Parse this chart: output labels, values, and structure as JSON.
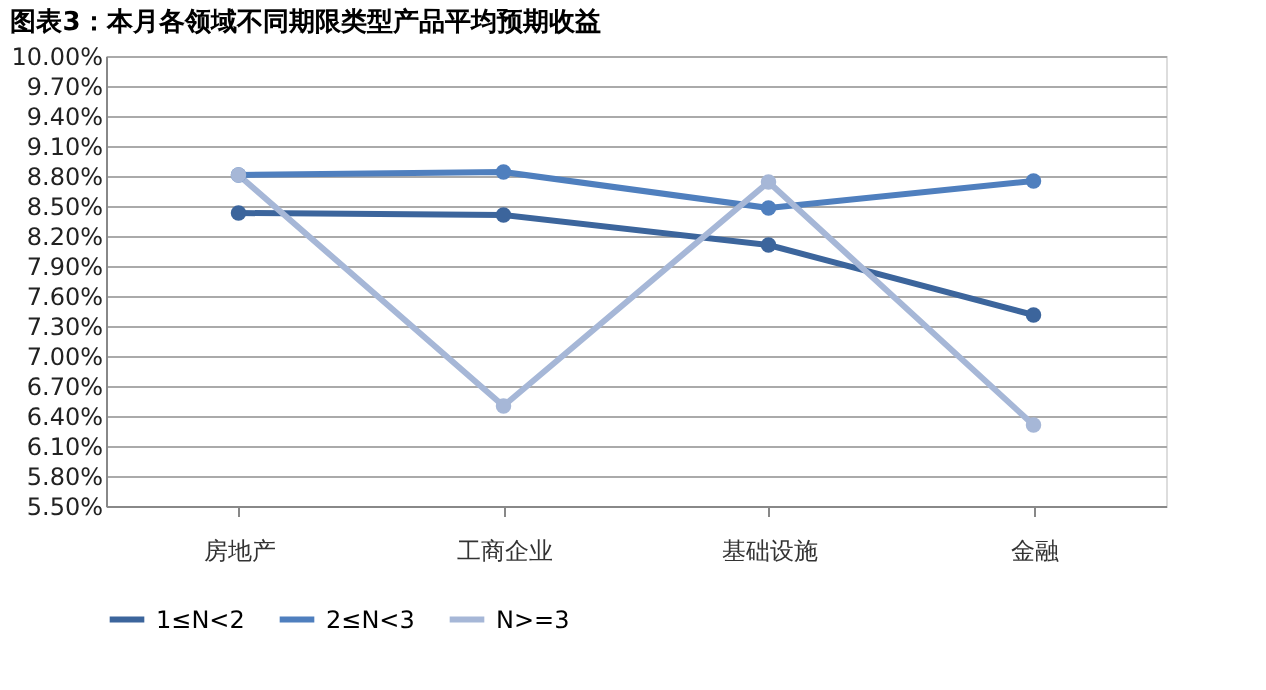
{
  "chart_data": {
    "type": "line",
    "title": "图表3：本月各领域不同期限类型产品平均预期收益",
    "categories": [
      "房地产",
      "工商企业",
      "基础设施",
      "金融"
    ],
    "series": [
      {
        "name": "1≤N<2",
        "color": "#3c659c",
        "values": [
          8.43,
          8.41,
          8.11,
          7.41
        ]
      },
      {
        "name": "2≤N<3",
        "color": "#4f7fbe",
        "values": [
          8.81,
          8.84,
          8.48,
          8.75
        ]
      },
      {
        "name": "N>=3",
        "color": "#a6b7d7",
        "values": [
          8.81,
          6.5,
          8.74,
          6.31
        ]
      }
    ],
    "ylim": [
      5.5,
      10.0
    ],
    "yticks": [
      {
        "value": 5.5,
        "label": "5.50%"
      },
      {
        "value": 5.8,
        "label": "5.80%"
      },
      {
        "value": 6.1,
        "label": "6.10%"
      },
      {
        "value": 6.4,
        "label": "6.40%"
      },
      {
        "value": 6.7,
        "label": "6.70%"
      },
      {
        "value": 7.0,
        "label": "7.00%"
      },
      {
        "value": 7.3,
        "label": "7.30%"
      },
      {
        "value": 7.6,
        "label": "7.60%"
      },
      {
        "value": 7.9,
        "label": "7.90%"
      },
      {
        "value": 8.2,
        "label": "8.20%"
      },
      {
        "value": 8.5,
        "label": "8.50%"
      },
      {
        "value": 8.8,
        "label": "8.80%"
      },
      {
        "value": 9.1,
        "label": "9.10%"
      },
      {
        "value": 9.4,
        "label": "9.40%"
      },
      {
        "value": 9.7,
        "label": "9.70%"
      },
      {
        "value": 10.0,
        "label": "10.00%"
      }
    ],
    "grid": "y",
    "legend": "bottom",
    "marker": "circle",
    "line_style": "solid"
  }
}
